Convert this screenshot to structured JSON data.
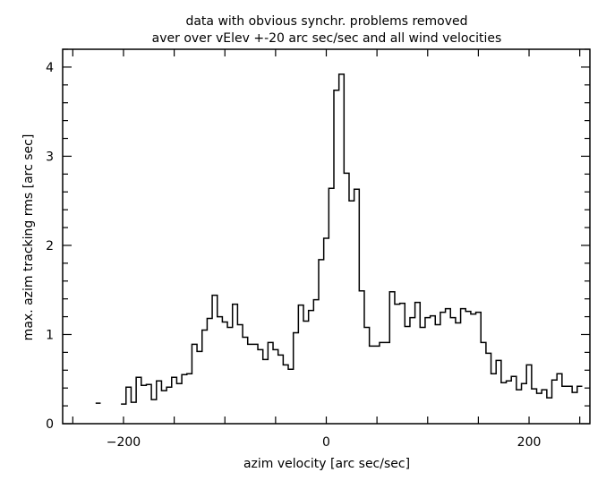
{
  "chart_data": {
    "type": "line",
    "style": "step-histogram",
    "title_lines": [
      "data with obvious synchr. problems removed",
      "aver over vElev +-20 arc sec/sec and all wind velocities"
    ],
    "xlabel": "azim velocity [arc sec/sec]",
    "ylabel": "max. azim tracking rms [arc sec]",
    "xlim": [
      -260,
      260
    ],
    "ylim": [
      0,
      4.2
    ],
    "x_ticks": [
      -200,
      0,
      200
    ],
    "x_tick_labels": [
      "−200",
      "0",
      "200"
    ],
    "x_minor_step": 50,
    "y_ticks": [
      0,
      1,
      2,
      3,
      4
    ],
    "y_tick_labels": [
      "0",
      "1",
      "2",
      "3",
      "4"
    ],
    "y_minor_step": 0.2,
    "bin_width": 5,
    "x": [
      -225,
      -220,
      -215,
      -210,
      -205,
      -200,
      -195,
      -190,
      -185,
      -180,
      -175,
      -170,
      -165,
      -160,
      -155,
      -150,
      -145,
      -140,
      -135,
      -130,
      -125,
      -120,
      -115,
      -110,
      -105,
      -100,
      -95,
      -90,
      -85,
      -80,
      -75,
      -70,
      -65,
      -60,
      -55,
      -50,
      -45,
      -40,
      -35,
      -30,
      -25,
      -20,
      -15,
      -10,
      -5,
      0,
      5,
      10,
      15,
      20,
      25,
      30,
      35,
      40,
      45,
      50,
      55,
      60,
      65,
      70,
      75,
      80,
      85,
      90,
      95,
      100,
      105,
      110,
      115,
      120,
      125,
      130,
      135,
      140,
      145,
      150,
      155,
      160,
      165,
      170,
      175,
      180,
      185,
      190,
      195,
      200,
      205,
      210,
      215,
      220,
      225,
      230,
      235,
      240,
      245,
      250
    ],
    "y": [
      0.23,
      null,
      null,
      null,
      null,
      0.22,
      0.41,
      0.24,
      0.52,
      0.43,
      0.44,
      0.27,
      0.48,
      0.37,
      0.41,
      0.52,
      0.45,
      0.55,
      0.56,
      0.89,
      0.81,
      1.05,
      1.18,
      1.44,
      1.2,
      1.14,
      1.08,
      1.34,
      1.11,
      0.97,
      0.89,
      0.89,
      0.83,
      0.72,
      0.91,
      0.83,
      0.77,
      0.66,
      0.61,
      1.02,
      1.33,
      1.15,
      1.27,
      1.39,
      1.84,
      2.08,
      2.64,
      3.74,
      3.92,
      2.81,
      2.5,
      2.63,
      1.49,
      1.08,
      0.87,
      0.87,
      0.91,
      0.91,
      1.48,
      1.34,
      1.35,
      1.09,
      1.19,
      1.36,
      1.08,
      1.19,
      1.21,
      1.11,
      1.25,
      1.29,
      1.19,
      1.13,
      1.29,
      1.26,
      1.23,
      1.25,
      0.91,
      0.79,
      0.56,
      0.71,
      0.46,
      0.48,
      0.53,
      0.38,
      0.45,
      0.66,
      0.39,
      0.34,
      0.38,
      0.29,
      0.49,
      0.56,
      0.42,
      0.42,
      0.35,
      0.42
    ],
    "grid": false,
    "legend": "none"
  }
}
